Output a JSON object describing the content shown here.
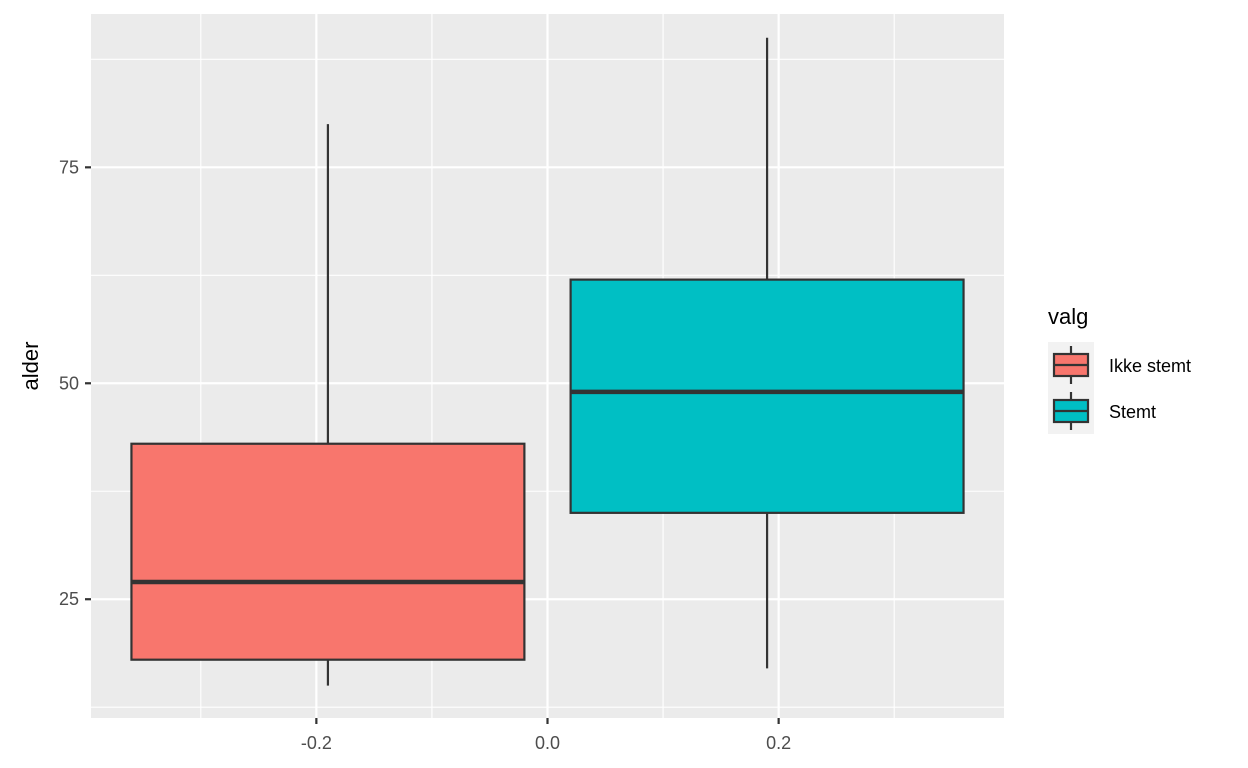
{
  "chart_data": {
    "type": "boxplot",
    "title": "",
    "xlabel": "",
    "ylabel": "alder",
    "xlim": [
      -0.395,
      0.395
    ],
    "ylim": [
      11.25,
      92.75
    ],
    "x_ticks": [
      -0.2,
      0.0,
      0.2
    ],
    "x_tick_labels": [
      "-0.2",
      "0.0",
      "0.2"
    ],
    "x_minor_ticks": [
      -0.3,
      -0.1,
      0.1,
      0.3
    ],
    "y_ticks": [
      25,
      50,
      75
    ],
    "y_tick_labels": [
      "25",
      "50",
      "75"
    ],
    "y_minor_ticks": [
      12.5,
      37.5,
      62.5,
      87.5
    ],
    "grid": true,
    "legend": {
      "title": "valg",
      "position": "right",
      "entries": [
        "Ikke stemt",
        "Stemt"
      ]
    },
    "series": [
      {
        "name": "Ikke stemt",
        "color": "#F8766D",
        "x_range": [
          -0.36,
          -0.02
        ],
        "min": 15,
        "q1": 18,
        "median": 27,
        "q3": 43,
        "max": 80
      },
      {
        "name": "Stemt",
        "color": "#00BFC4",
        "x_range": [
          0.02,
          0.36
        ],
        "min": 17,
        "q1": 35,
        "median": 49,
        "q3": 62,
        "max": 90
      }
    ],
    "colors": {
      "panel_background": "#EBEBEB",
      "grid": "#FFFFFF",
      "box_outline": "#333333"
    }
  }
}
